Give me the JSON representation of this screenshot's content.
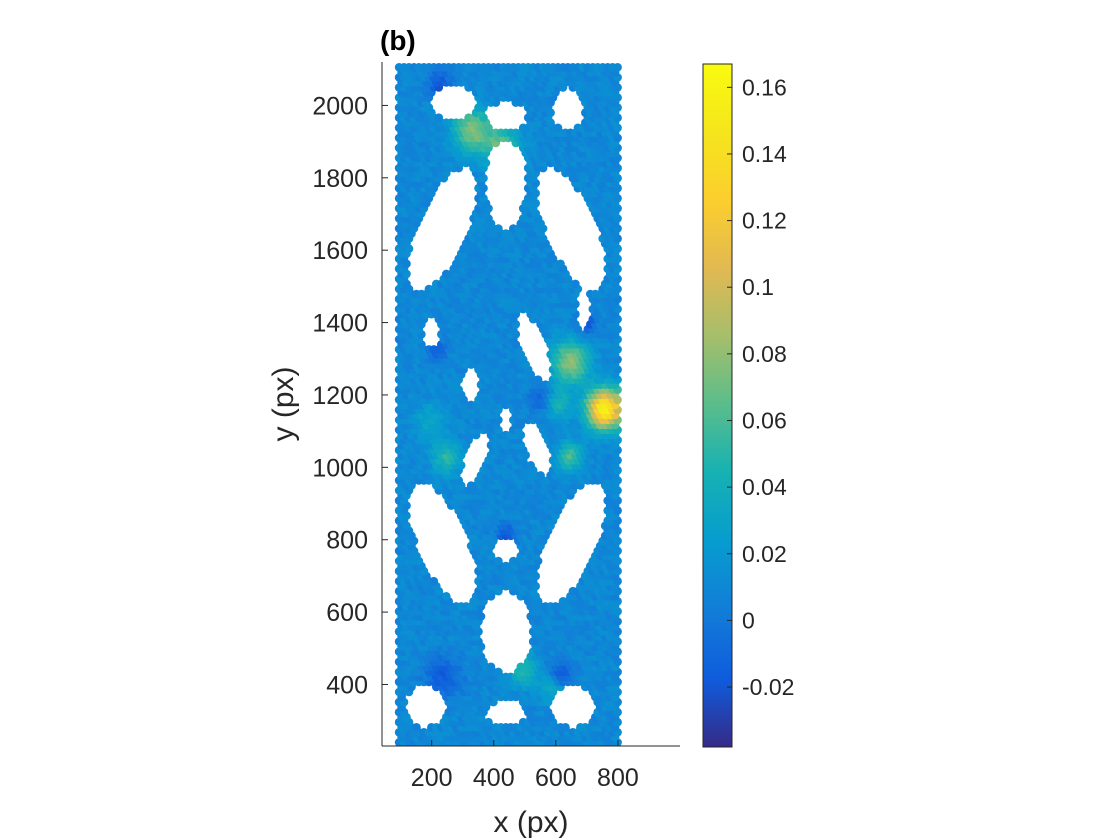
{
  "chart_data": {
    "type": "scatter",
    "title": "(b)",
    "xlabel": "x (px)",
    "ylabel": "y (px)",
    "xlim": [
      40,
      1000
    ],
    "ylim": [
      230,
      2120
    ],
    "xticks": [
      200,
      400,
      600,
      800
    ],
    "yticks": [
      400,
      600,
      800,
      1000,
      1200,
      1400,
      1600,
      1800,
      2000
    ],
    "colorbar": {
      "colormap": "parula",
      "range": [
        -0.038,
        0.167
      ],
      "ticks": [
        -0.02,
        0,
        0.02,
        0.04,
        0.06,
        0.08,
        0.1,
        0.12,
        0.14,
        0.16
      ],
      "tick_labels": [
        "-0.02",
        "0",
        "0.02",
        "0.04",
        "0.06",
        "0.08",
        "0.1",
        "0.12",
        "0.14",
        "0.16"
      ]
    },
    "grid": false,
    "marker": "filled circle",
    "background_value": 0.01,
    "specimen_region": {
      "x": [
        95,
        800
      ],
      "y": [
        240,
        2110
      ]
    },
    "voids": [
      {
        "cx": 235,
        "cy": 1658,
        "rx": 80,
        "ry": 190,
        "angle": -28
      },
      {
        "cx": 650,
        "cy": 1658,
        "rx": 80,
        "ry": 190,
        "angle": 28
      },
      {
        "cx": 235,
        "cy": 790,
        "rx": 80,
        "ry": 190,
        "angle": 28
      },
      {
        "cx": 650,
        "cy": 790,
        "rx": 80,
        "ry": 190,
        "angle": -28
      },
      {
        "cx": 440,
        "cy": 1795,
        "rx": 70,
        "ry": 110,
        "angle": 0
      },
      {
        "cx": 440,
        "cy": 1700,
        "rx": 50,
        "ry": 42,
        "angle": 0
      },
      {
        "cx": 440,
        "cy": 1970,
        "rx": 70,
        "ry": 42,
        "angle": 0
      },
      {
        "cx": 270,
        "cy": 2010,
        "rx": 75,
        "ry": 50,
        "angle": 0
      },
      {
        "cx": 640,
        "cy": 1990,
        "rx": 55,
        "ry": 60,
        "angle": 0
      },
      {
        "cx": 440,
        "cy": 545,
        "rx": 85,
        "ry": 115,
        "angle": 0
      },
      {
        "cx": 440,
        "cy": 770,
        "rx": 50,
        "ry": 32,
        "angle": 0
      },
      {
        "cx": 440,
        "cy": 320,
        "rx": 70,
        "ry": 38,
        "angle": 0
      },
      {
        "cx": 180,
        "cy": 340,
        "rx": 70,
        "ry": 60,
        "angle": 0
      },
      {
        "cx": 655,
        "cy": 340,
        "rx": 75,
        "ry": 60,
        "angle": 0
      },
      {
        "cx": 325,
        "cy": 1225,
        "rx": 32,
        "ry": 50,
        "angle": 0
      },
      {
        "cx": 530,
        "cy": 1330,
        "rx": 40,
        "ry": 105,
        "angle": 25
      },
      {
        "cx": 340,
        "cy": 1020,
        "rx": 35,
        "ry": 80,
        "angle": -25
      },
      {
        "cx": 540,
        "cy": 1050,
        "rx": 40,
        "ry": 80,
        "angle": 25
      },
      {
        "cx": 690,
        "cy": 1440,
        "rx": 25,
        "ry": 60,
        "angle": 0
      },
      {
        "cx": 440,
        "cy": 1130,
        "rx": 22,
        "ry": 38,
        "angle": 0
      },
      {
        "cx": 200,
        "cy": 1370,
        "rx": 28,
        "ry": 45,
        "angle": 0
      }
    ],
    "hotspots": [
      {
        "x": 760,
        "y": 1165,
        "value": 0.16,
        "r": 55
      },
      {
        "x": 650,
        "y": 1295,
        "value": 0.08,
        "r": 60
      },
      {
        "x": 335,
        "y": 1935,
        "value": 0.075,
        "r": 60
      },
      {
        "x": 430,
        "y": 1885,
        "value": 0.07,
        "r": 55
      },
      {
        "x": 650,
        "y": 1035,
        "value": 0.06,
        "r": 40
      },
      {
        "x": 250,
        "y": 1030,
        "value": 0.05,
        "r": 45
      },
      {
        "x": 500,
        "y": 445,
        "value": 0.05,
        "r": 45
      },
      {
        "x": 595,
        "y": 395,
        "value": 0.04,
        "r": 40
      },
      {
        "x": 610,
        "y": 1180,
        "value": 0.05,
        "r": 40
      },
      {
        "x": 200,
        "y": 1130,
        "value": 0.035,
        "r": 50
      }
    ],
    "coldspots": [
      {
        "x": 620,
        "y": 430,
        "value": -0.025,
        "r": 40
      },
      {
        "x": 230,
        "y": 2060,
        "value": -0.02,
        "r": 40
      },
      {
        "x": 240,
        "y": 425,
        "value": -0.015,
        "r": 60
      },
      {
        "x": 700,
        "y": 1400,
        "value": -0.02,
        "r": 35
      },
      {
        "x": 560,
        "y": 1195,
        "value": -0.015,
        "r": 40
      },
      {
        "x": 440,
        "y": 820,
        "value": -0.02,
        "r": 30
      },
      {
        "x": 220,
        "y": 1330,
        "value": -0.015,
        "r": 30
      }
    ]
  }
}
